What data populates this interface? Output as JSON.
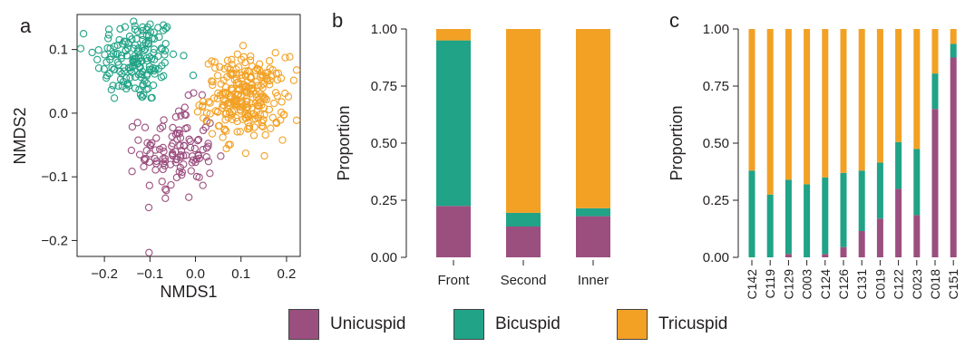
{
  "colors": {
    "unicuspid": "#9b4f7f",
    "bicuspid": "#20a386",
    "tricuspid": "#f2a125",
    "axis": "#231f20"
  },
  "panels": {
    "a": "a",
    "b": "b",
    "c": "c"
  },
  "chart_data": [
    {
      "panel": "a",
      "type": "scatter",
      "xlabel": "NMDS1",
      "ylabel": "NMDS2",
      "xlim": [
        -0.26,
        0.23
      ],
      "ylim": [
        -0.225,
        0.155
      ],
      "xticks": [
        -0.2,
        -0.1,
        0.0,
        0.1,
        0.2
      ],
      "xtick_labels": [
        "−0.2",
        "−0.1",
        "0.0",
        "0.1",
        "0.2"
      ],
      "yticks": [
        0.1,
        0.0,
        -0.1,
        -0.2
      ],
      "ytick_labels": [
        "0.1",
        "0.0",
        "−0.1",
        "−0.2"
      ],
      "grid": false,
      "marker": "open circle",
      "series": [
        {
          "name": "Bicuspid",
          "color_key": "bicuspid",
          "center": [
            -0.13,
            0.085
          ],
          "spread": [
            0.045,
            0.035
          ],
          "n": 170
        },
        {
          "name": "Unicuspid",
          "color_key": "unicuspid",
          "center": [
            -0.04,
            -0.06
          ],
          "spread": [
            0.04,
            0.038
          ],
          "n": 120
        },
        {
          "name": "Tricuspid",
          "color_key": "tricuspid",
          "center": [
            0.11,
            0.025
          ],
          "spread": [
            0.045,
            0.032
          ],
          "n": 260
        }
      ]
    },
    {
      "panel": "b",
      "type": "bar",
      "stacked": true,
      "categories": [
        "Front",
        "Second",
        "Inner"
      ],
      "series": [
        {
          "name": "Unicuspid",
          "color_key": "unicuspid",
          "values": [
            0.225,
            0.135,
            0.18
          ]
        },
        {
          "name": "Bicuspid",
          "color_key": "bicuspid",
          "values": [
            0.725,
            0.06,
            0.035
          ]
        },
        {
          "name": "Tricuspid",
          "color_key": "tricuspid",
          "values": [
            0.05,
            0.805,
            0.785
          ]
        }
      ],
      "ylabel": "Proportion",
      "ylim": [
        0,
        1
      ],
      "yticks": [
        0,
        0.25,
        0.5,
        0.75,
        1.0
      ],
      "ytick_labels": [
        "0.00",
        "0.25",
        "0.50",
        "0.75",
        "1.00"
      ]
    },
    {
      "panel": "c",
      "type": "bar",
      "stacked": true,
      "categories": [
        "C142",
        "C119",
        "C129",
        "C003",
        "C124",
        "C126",
        "C131",
        "C019",
        "C122",
        "C023",
        "C018",
        "C151"
      ],
      "series": [
        {
          "name": "Unicuspid",
          "color_key": "unicuspid",
          "values": [
            0.0,
            0.0,
            0.015,
            0.0,
            0.015,
            0.045,
            0.115,
            0.17,
            0.3,
            0.185,
            0.65,
            0.875
          ]
        },
        {
          "name": "Bicuspid",
          "color_key": "bicuspid",
          "values": [
            0.38,
            0.275,
            0.325,
            0.32,
            0.335,
            0.325,
            0.265,
            0.245,
            0.205,
            0.29,
            0.155,
            0.06
          ]
        },
        {
          "name": "Tricuspid",
          "color_key": "tricuspid",
          "values": [
            0.62,
            0.725,
            0.66,
            0.68,
            0.65,
            0.63,
            0.62,
            0.585,
            0.495,
            0.525,
            0.195,
            0.065
          ]
        }
      ],
      "ylabel": "Proportion",
      "ylim": [
        0,
        1
      ],
      "yticks": [
        0,
        0.25,
        0.5,
        0.75,
        1.0
      ],
      "ytick_labels": [
        "0.00",
        "0.25",
        "0.50",
        "0.75",
        "1.00"
      ]
    }
  ],
  "legend": {
    "placement": "bottom",
    "items": [
      {
        "label": "Unicuspid",
        "color_key": "unicuspid"
      },
      {
        "label": "Bicuspid",
        "color_key": "bicuspid"
      },
      {
        "label": "Tricuspid",
        "color_key": "tricuspid"
      }
    ]
  }
}
